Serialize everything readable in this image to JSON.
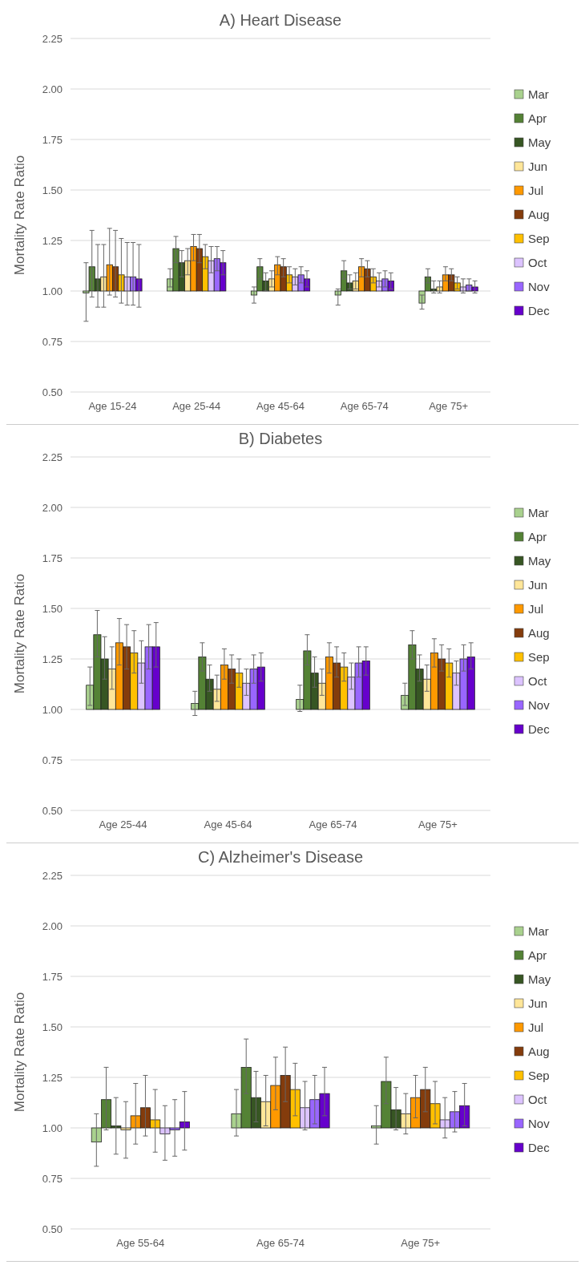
{
  "chart_data": [
    {
      "type": "bar",
      "title": "A) Heart Disease",
      "ylabel": "Mortality Rate Ratio",
      "categories": [
        "Age 15-24",
        "Age 25-44",
        "Age 45-64",
        "Age 65-74",
        "Age 75+"
      ],
      "ylim": [
        0.5,
        2.25
      ],
      "yticks": [
        {
          "value": 0.5,
          "label": "0.50"
        },
        {
          "value": 0.75,
          "label": "0.75"
        },
        {
          "value": 1,
          "label": "1.00"
        },
        {
          "value": 1.25,
          "label": "1.25"
        },
        {
          "value": 1.5,
          "label": "1.50"
        },
        {
          "value": 1.75,
          "label": "1.75"
        },
        {
          "value": 2,
          "label": "2.00"
        },
        {
          "value": 2.25,
          "label": "2.25"
        }
      ],
      "grid": "y",
      "legend": "right",
      "series": [
        {
          "name": "Mar",
          "color": "#a9d18e",
          "base": [
            1,
            1,
            1,
            1,
            1
          ],
          "values": [
            -0.01,
            0.06,
            -0.02,
            -0.02,
            -0.06
          ],
          "errors": [
            [
              0.85,
              1.14
            ],
            [
              1.02,
              1.11
            ],
            [
              0.94,
              1.02
            ],
            [
              0.93,
              1.01
            ],
            [
              0.91,
              0.98
            ]
          ]
        },
        {
          "name": "Apr",
          "color": "#548235",
          "base": [
            1,
            1,
            1,
            1,
            1
          ],
          "values": [
            0.12,
            0.21,
            0.12,
            0.1,
            0.07
          ],
          "errors": [
            [
              0.97,
              1.3
            ],
            [
              1.14,
              1.27
            ],
            [
              1.06,
              1.16
            ],
            [
              1.06,
              1.15
            ],
            [
              1.04,
              1.11
            ]
          ]
        },
        {
          "name": "May",
          "color": "#375623",
          "base": [
            1,
            1,
            1,
            1,
            1
          ],
          "values": [
            0.06,
            0.14,
            0.05,
            0.04,
            0.01
          ],
          "errors": [
            [
              0.92,
              1.23
            ],
            [
              1.07,
              1.2
            ],
            [
              1.0,
              1.09
            ],
            [
              1.01,
              1.08
            ],
            [
              0.99,
              1.05
            ]
          ]
        },
        {
          "name": "Jun",
          "color": "#ffe699",
          "base": [
            1,
            1,
            1,
            1,
            1
          ],
          "values": [
            0.07,
            0.15,
            0.06,
            0.05,
            0.02
          ],
          "errors": [
            [
              0.92,
              1.23
            ],
            [
              1.08,
              1.21
            ],
            [
              1.02,
              1.1
            ],
            [
              1.01,
              1.09
            ],
            [
              0.99,
              1.05
            ]
          ]
        },
        {
          "name": "Jul",
          "color": "#ff9900",
          "base": [
            1,
            1,
            1,
            1,
            1
          ],
          "values": [
            0.13,
            0.22,
            0.13,
            0.12,
            0.08
          ],
          "errors": [
            [
              0.98,
              1.31
            ],
            [
              1.15,
              1.28
            ],
            [
              1.08,
              1.17
            ],
            [
              1.07,
              1.16
            ],
            [
              1.05,
              1.12
            ]
          ]
        },
        {
          "name": "Aug",
          "color": "#843c0c",
          "base": [
            1,
            1,
            1,
            1,
            1
          ],
          "values": [
            0.12,
            0.21,
            0.12,
            0.11,
            0.08
          ],
          "errors": [
            [
              0.97,
              1.3
            ],
            [
              1.14,
              1.28
            ],
            [
              1.07,
              1.16
            ],
            [
              1.07,
              1.15
            ],
            [
              1.05,
              1.11
            ]
          ]
        },
        {
          "name": "Sep",
          "color": "#ffc000",
          "base": [
            1,
            1,
            1,
            1,
            1
          ],
          "values": [
            0.08,
            0.17,
            0.08,
            0.07,
            0.04
          ],
          "errors": [
            [
              0.94,
              1.26
            ],
            [
              1.11,
              1.23
            ],
            [
              1.04,
              1.12
            ],
            [
              1.04,
              1.11
            ],
            [
              1.01,
              1.07
            ]
          ]
        },
        {
          "name": "Oct",
          "color": "#dcc3ff",
          "base": [
            1,
            1,
            1,
            1,
            1
          ],
          "values": [
            0.07,
            0.15,
            0.07,
            0.05,
            0.02
          ],
          "errors": [
            [
              0.93,
              1.24
            ],
            [
              1.09,
              1.22
            ],
            [
              1.03,
              1.11
            ],
            [
              1.02,
              1.09
            ],
            [
              0.99,
              1.06
            ]
          ]
        },
        {
          "name": "Nov",
          "color": "#9966ff",
          "base": [
            1,
            1,
            1,
            1,
            1
          ],
          "values": [
            0.07,
            0.16,
            0.08,
            0.06,
            0.03
          ],
          "errors": [
            [
              0.93,
              1.24
            ],
            [
              1.1,
              1.22
            ],
            [
              1.04,
              1.12
            ],
            [
              1.02,
              1.1
            ],
            [
              1.0,
              1.06
            ]
          ]
        },
        {
          "name": "Dec",
          "color": "#6600cc",
          "base": [
            1,
            1,
            1,
            1,
            1
          ],
          "values": [
            0.06,
            0.14,
            0.06,
            0.05,
            0.02
          ],
          "errors": [
            [
              0.92,
              1.23
            ],
            [
              1.08,
              1.2
            ],
            [
              1.02,
              1.1
            ],
            [
              1.01,
              1.09
            ],
            [
              0.99,
              1.05
            ]
          ]
        }
      ]
    },
    {
      "type": "bar",
      "title": "B) Diabetes",
      "ylabel": "Mortality Rate Ratio",
      "categories": [
        "Age 25-44",
        "Age 45-64",
        "Age 65-74",
        "Age 75+"
      ],
      "ylim": [
        0.5,
        2.25
      ],
      "yticks": [
        {
          "value": 0.5,
          "label": "0.50"
        },
        {
          "value": 0.75,
          "label": "0.75"
        },
        {
          "value": 1,
          "label": "1.00"
        },
        {
          "value": 1.25,
          "label": "1.25"
        },
        {
          "value": 1.5,
          "label": "1.50"
        },
        {
          "value": 1.75,
          "label": "1.75"
        },
        {
          "value": 2,
          "label": "2.00"
        },
        {
          "value": 2.25,
          "label": "2.25"
        }
      ],
      "grid": "y",
      "legend": "right",
      "series": [
        {
          "name": "Mar",
          "color": "#a9d18e",
          "base": [
            1,
            1,
            1,
            1
          ],
          "values": [
            0.12,
            0.03,
            0.05,
            0.07
          ],
          "errors": [
            [
              1.02,
              1.21
            ],
            [
              0.97,
              1.09
            ],
            [
              0.99,
              1.12
            ],
            [
              1.02,
              1.13
            ]
          ]
        },
        {
          "name": "Apr",
          "color": "#548235",
          "base": [
            1,
            1,
            1,
            1
          ],
          "values": [
            0.37,
            0.26,
            0.29,
            0.32
          ],
          "errors": [
            [
              1.26,
              1.49
            ],
            [
              1.19,
              1.33
            ],
            [
              1.22,
              1.37
            ],
            [
              1.25,
              1.39
            ]
          ]
        },
        {
          "name": "May",
          "color": "#375623",
          "base": [
            1,
            1,
            1,
            1
          ],
          "values": [
            0.25,
            0.15,
            0.18,
            0.2
          ],
          "errors": [
            [
              1.15,
              1.36
            ],
            [
              1.09,
              1.22
            ],
            [
              1.11,
              1.26
            ],
            [
              1.14,
              1.27
            ]
          ]
        },
        {
          "name": "Jun",
          "color": "#ffe699",
          "base": [
            1,
            1,
            1,
            1
          ],
          "values": [
            0.2,
            0.1,
            0.13,
            0.15
          ],
          "errors": [
            [
              1.1,
              1.31
            ],
            [
              1.04,
              1.17
            ],
            [
              1.07,
              1.2
            ],
            [
              1.09,
              1.22
            ]
          ]
        },
        {
          "name": "Jul",
          "color": "#ff9900",
          "base": [
            1,
            1,
            1,
            1
          ],
          "values": [
            0.33,
            0.22,
            0.26,
            0.28
          ],
          "errors": [
            [
              1.22,
              1.45
            ],
            [
              1.15,
              1.3
            ],
            [
              1.18,
              1.33
            ],
            [
              1.21,
              1.35
            ]
          ]
        },
        {
          "name": "Aug",
          "color": "#843c0c",
          "base": [
            1,
            1,
            1,
            1
          ],
          "values": [
            0.31,
            0.2,
            0.23,
            0.25
          ],
          "errors": [
            [
              1.2,
              1.42
            ],
            [
              1.13,
              1.27
            ],
            [
              1.16,
              1.31
            ],
            [
              1.19,
              1.32
            ]
          ]
        },
        {
          "name": "Sep",
          "color": "#ffc000",
          "base": [
            1,
            1,
            1,
            1
          ],
          "values": [
            0.28,
            0.18,
            0.21,
            0.23
          ],
          "errors": [
            [
              1.18,
              1.39
            ],
            [
              1.11,
              1.25
            ],
            [
              1.14,
              1.28
            ],
            [
              1.16,
              1.3
            ]
          ]
        },
        {
          "name": "Oct",
          "color": "#dcc3ff",
          "base": [
            1,
            1,
            1,
            1
          ],
          "values": [
            0.23,
            0.13,
            0.16,
            0.18
          ],
          "errors": [
            [
              1.13,
              1.34
            ],
            [
              1.07,
              1.2
            ],
            [
              1.1,
              1.23
            ],
            [
              1.12,
              1.24
            ]
          ]
        },
        {
          "name": "Nov",
          "color": "#9966ff",
          "base": [
            1,
            1,
            1,
            1
          ],
          "values": [
            0.31,
            0.2,
            0.23,
            0.25
          ],
          "errors": [
            [
              1.2,
              1.42
            ],
            [
              1.13,
              1.27
            ],
            [
              1.16,
              1.31
            ],
            [
              1.19,
              1.32
            ]
          ]
        },
        {
          "name": "Dec",
          "color": "#6600cc",
          "base": [
            1,
            1,
            1,
            1
          ],
          "values": [
            0.31,
            0.21,
            0.24,
            0.26
          ],
          "errors": [
            [
              1.21,
              1.43
            ],
            [
              1.14,
              1.28
            ],
            [
              1.17,
              1.31
            ],
            [
              1.2,
              1.33
            ]
          ]
        }
      ]
    },
    {
      "type": "bar",
      "title": "C) Alzheimer's Disease",
      "ylabel": "Mortality Rate Ratio",
      "categories": [
        "Age 55-64",
        "Age 65-74",
        "Age 75+"
      ],
      "ylim": [
        0.5,
        2.25
      ],
      "yticks": [
        {
          "value": 0.5,
          "label": "0.50"
        },
        {
          "value": 0.75,
          "label": "0.75"
        },
        {
          "value": 1,
          "label": "1.00"
        },
        {
          "value": 1.25,
          "label": "1.25"
        },
        {
          "value": 1.5,
          "label": "1.50"
        },
        {
          "value": 1.75,
          "label": "1.75"
        },
        {
          "value": 2,
          "label": "2.00"
        },
        {
          "value": 2.25,
          "label": "2.25"
        }
      ],
      "grid": "y",
      "legend": "right",
      "series": [
        {
          "name": "Mar",
          "color": "#a9d18e",
          "base": [
            1,
            1,
            1
          ],
          "values": [
            -0.07,
            0.07,
            0.01
          ],
          "errors": [
            [
              0.81,
              1.07
            ],
            [
              0.96,
              1.19
            ],
            [
              0.92,
              1.11
            ]
          ]
        },
        {
          "name": "Apr",
          "color": "#548235",
          "base": [
            1,
            1,
            1
          ],
          "values": [
            0.14,
            0.3,
            0.23
          ],
          "errors": [
            [
              0.99,
              1.3
            ],
            [
              1.17,
              1.44
            ],
            [
              1.12,
              1.35
            ]
          ]
        },
        {
          "name": "May",
          "color": "#375623",
          "base": [
            1,
            1,
            1
          ],
          "values": [
            0.01,
            0.15,
            0.09
          ],
          "errors": [
            [
              0.87,
              1.15
            ],
            [
              1.03,
              1.28
            ],
            [
              0.99,
              1.2
            ]
          ]
        },
        {
          "name": "Jun",
          "color": "#ffe699",
          "base": [
            1,
            1,
            1
          ],
          "values": [
            -0.01,
            0.13,
            0.07
          ],
          "errors": [
            [
              0.85,
              1.13
            ],
            [
              1.01,
              1.26
            ],
            [
              0.97,
              1.17
            ]
          ]
        },
        {
          "name": "Jul",
          "color": "#ff9900",
          "base": [
            1,
            1,
            1
          ],
          "values": [
            0.06,
            0.21,
            0.15
          ],
          "errors": [
            [
              0.92,
              1.22
            ],
            [
              1.09,
              1.35
            ],
            [
              1.05,
              1.26
            ]
          ]
        },
        {
          "name": "Aug",
          "color": "#843c0c",
          "base": [
            1,
            1,
            1
          ],
          "values": [
            0.1,
            0.26,
            0.19
          ],
          "errors": [
            [
              0.96,
              1.26
            ],
            [
              1.13,
              1.4
            ],
            [
              1.08,
              1.3
            ]
          ]
        },
        {
          "name": "Sep",
          "color": "#ffc000",
          "base": [
            1,
            1,
            1
          ],
          "values": [
            0.04,
            0.19,
            0.12
          ],
          "errors": [
            [
              0.88,
              1.19
            ],
            [
              1.06,
              1.32
            ],
            [
              1.02,
              1.23
            ]
          ]
        },
        {
          "name": "Oct",
          "color": "#dcc3ff",
          "base": [
            1,
            1,
            1
          ],
          "values": [
            -0.03,
            0.1,
            0.04
          ],
          "errors": [
            [
              0.84,
              1.11
            ],
            [
              0.99,
              1.23
            ],
            [
              0.95,
              1.15
            ]
          ]
        },
        {
          "name": "Nov",
          "color": "#9966ff",
          "base": [
            1,
            1,
            1
          ],
          "values": [
            -0.01,
            0.14,
            0.08
          ],
          "errors": [
            [
              0.86,
              1.14
            ],
            [
              1.02,
              1.26
            ],
            [
              0.98,
              1.18
            ]
          ]
        },
        {
          "name": "Dec",
          "color": "#6600cc",
          "base": [
            1,
            1,
            1
          ],
          "values": [
            0.03,
            0.17,
            0.11
          ],
          "errors": [
            [
              0.89,
              1.18
            ],
            [
              1.06,
              1.3
            ],
            [
              1.01,
              1.22
            ]
          ]
        }
      ]
    }
  ]
}
